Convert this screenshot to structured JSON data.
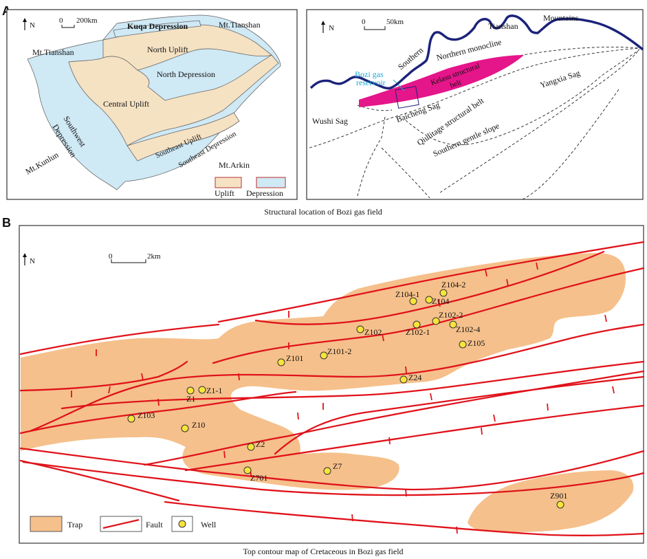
{
  "panel_a": {
    "label": "A",
    "caption": "Structural location of Bozi gas field",
    "tarim": {
      "north": "N",
      "scale_zero": "0",
      "scale_len": "200km",
      "labels": {
        "kuqa": "Kuqa Depression",
        "tianshan_left": "Mt.Tianshan",
        "tianshan_right": "Mt.Tianshan",
        "north_uplift": "North Uplift",
        "north_depression": "North Depression",
        "central_uplift": "Central Uplift",
        "southwest": "Southwest",
        "depression": "Depression",
        "southeast_uplift": "Southeast Uplift",
        "southeast_depression": "Southeast Depression",
        "arkin": "Mt.Arkin",
        "kunlun": "Mt.Kunlun"
      },
      "legend": {
        "uplift": "Uplift",
        "depression": "Depression"
      },
      "colors": {
        "uplift": "#f5e2c3",
        "depression": "#cfe9f5"
      }
    },
    "kuqa_map": {
      "north": "N",
      "scale_zero": "0",
      "scale_len": "50km",
      "labels": {
        "southern": "Southern",
        "tianshan": "Tianshan",
        "mountains": "Mountains",
        "northern_monocline": "Northern monocline",
        "bozi_line1": "Bozi gas",
        "bozi_line2": "reservoir",
        "kelasu_line1": "Kelasu structural",
        "kelasu_line2": "belt",
        "yangxia": "Yangxia Sag",
        "baicheng": "Baicheng Sag",
        "wushi": "Wushi Sag",
        "qiulitage": "Qiulitage structural belt",
        "southern_slope": "Southern gentle slope"
      },
      "colors": {
        "kelasu": "#e5158a",
        "mountains": "#1b237a",
        "bozi": "#1aa7d9"
      }
    }
  },
  "panel_b": {
    "label": "B",
    "caption": "Top contour map of Cretaceous in Bozi gas field",
    "north": "N",
    "scale_zero": "0",
    "scale_len": "2km",
    "legend": {
      "trap": "Trap",
      "fault": "Fault",
      "well": "Well"
    },
    "colors": {
      "trap": "#f5c08b",
      "fault": "#e0121a",
      "well": "#f7e43a"
    },
    "wells": [
      {
        "name": "Z104-2"
      },
      {
        "name": "Z104-1"
      },
      {
        "name": "Z104"
      },
      {
        "name": "Z102-2"
      },
      {
        "name": "Z102"
      },
      {
        "name": "Z102-1"
      },
      {
        "name": "Z102-4"
      },
      {
        "name": "Z105"
      },
      {
        "name": "Z101"
      },
      {
        "name": "Z101-2"
      },
      {
        "name": "Z24"
      },
      {
        "name": "Z1"
      },
      {
        "name": "Z1-1"
      },
      {
        "name": "Z103"
      },
      {
        "name": "Z10"
      },
      {
        "name": "Z2"
      },
      {
        "name": "Z701"
      },
      {
        "name": "Z7"
      },
      {
        "name": "Z901"
      }
    ]
  }
}
